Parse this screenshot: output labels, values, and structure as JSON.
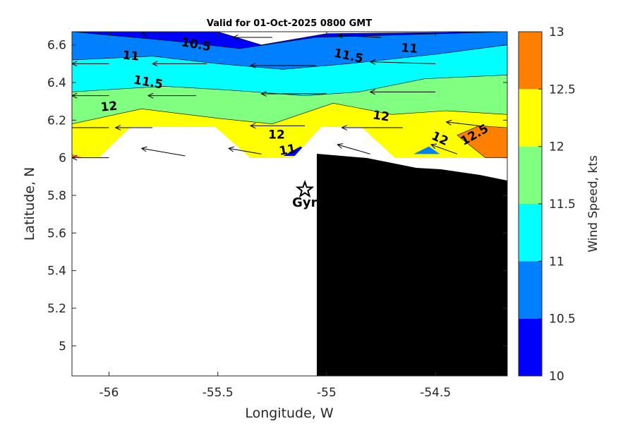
{
  "chart_data": {
    "type": "contour",
    "title": "Valid for 01-Oct-2025 0800 GMT",
    "xlabel": "Longitude, W",
    "ylabel": "Latitude, N",
    "xlim": [
      -56.17,
      -54.17
    ],
    "ylim": [
      4.84,
      6.67
    ],
    "xticks": [
      -56,
      -55.5,
      -55,
      -54.5
    ],
    "xtick_labels": [
      "-56",
      "-55.5",
      "-55",
      "-54.5"
    ],
    "yticks": [
      5,
      5.2,
      5.4,
      5.6,
      5.8,
      6,
      6.2,
      6.4,
      6.6
    ],
    "ytick_labels": [
      "5",
      "5.2",
      "5.4",
      "5.6",
      "5.8",
      "6",
      "6.2",
      "6.4",
      "6.6"
    ],
    "colorbar": {
      "label": "Wind Speed, kts",
      "limits": [
        10,
        13
      ],
      "ticks": [
        10,
        10.5,
        11,
        11.5,
        12,
        12.5,
        13
      ],
      "tick_labels": [
        "10",
        "10.5",
        "11",
        "11.5",
        "12",
        "12.5",
        "13"
      ],
      "levels": [
        {
          "from": 10,
          "to": 10.5,
          "color": "#0000ff"
        },
        {
          "from": 10.5,
          "to": 11,
          "color": "#0080ff"
        },
        {
          "from": 11,
          "to": 11.5,
          "color": "#00ffff"
        },
        {
          "from": 11.5,
          "to": 12,
          "color": "#80ff80"
        },
        {
          "from": 12,
          "to": 12.5,
          "color": "#ffff00"
        },
        {
          "from": 12.5,
          "to": 13,
          "color": "#ff8000"
        }
      ]
    },
    "bands": [
      {
        "level": 10,
        "points": [
          [
            -56.17,
            6.67
          ],
          [
            -55.5,
            6.67
          ],
          [
            -55.3,
            6.6
          ],
          [
            -55,
            6.66
          ],
          [
            -54.17,
            6.67
          ]
        ]
      },
      {
        "level": 10.5,
        "points": [
          [
            -56.17,
            6.67
          ],
          [
            -55.7,
            6.62
          ],
          [
            -55.4,
            6.58
          ],
          [
            -55.05,
            6.64
          ],
          [
            -54.17,
            6.67
          ]
        ]
      },
      {
        "level": 11,
        "points": [
          [
            -56.17,
            6.52
          ],
          [
            -55.8,
            6.54
          ],
          [
            -55.5,
            6.5
          ],
          [
            -55.2,
            6.47
          ],
          [
            -54.9,
            6.5
          ],
          [
            -54.5,
            6.55
          ],
          [
            -54.17,
            6.6
          ]
        ]
      },
      {
        "level": 11.5,
        "points": [
          [
            -56.17,
            6.35
          ],
          [
            -55.75,
            6.38
          ],
          [
            -55.45,
            6.36
          ],
          [
            -55.1,
            6.33
          ],
          [
            -54.85,
            6.35
          ],
          [
            -54.55,
            6.42
          ],
          [
            -54.17,
            6.44
          ]
        ]
      },
      {
        "level": 12,
        "points": [
          [
            -56.17,
            6.18
          ],
          [
            -55.85,
            6.26
          ],
          [
            -55.5,
            6.21
          ],
          [
            -55.25,
            6.18
          ],
          [
            -54.97,
            6.29
          ],
          [
            -54.7,
            6.23
          ],
          [
            -54.45,
            6.25
          ],
          [
            -54.17,
            6.23
          ]
        ]
      },
      {
        "level": 12.5,
        "points": [
          [
            -54.17,
            6.16
          ],
          [
            -54.3,
            6.17
          ],
          [
            -54.4,
            6.12
          ],
          [
            -54.27,
            6.0
          ],
          [
            -54.17,
            6.0
          ]
        ]
      }
    ],
    "contour_labels": [
      {
        "text": "10.5",
        "lon": -55.6,
        "lat": 6.6,
        "rotate": 10
      },
      {
        "text": "11",
        "lon": -55.9,
        "lat": 6.54,
        "rotate": 5
      },
      {
        "text": "11.5",
        "lon": -55.82,
        "lat": 6.4,
        "rotate": 10
      },
      {
        "text": "12",
        "lon": -56.0,
        "lat": 6.27,
        "rotate": -5
      },
      {
        "text": "11.5",
        "lon": -54.9,
        "lat": 6.54,
        "rotate": 12
      },
      {
        "text": "11",
        "lon": -54.62,
        "lat": 6.58,
        "rotate": 5
      },
      {
        "text": "12",
        "lon": -54.75,
        "lat": 6.22,
        "rotate": 8
      },
      {
        "text": "12",
        "lon": -55.23,
        "lat": 6.12,
        "rotate": 0
      },
      {
        "text": "11",
        "lon": -55.18,
        "lat": 6.04,
        "rotate": -10
      },
      {
        "text": "12",
        "lon": -54.48,
        "lat": 6.1,
        "rotate": 25
      },
      {
        "text": "12.5",
        "lon": -54.32,
        "lat": 6.12,
        "rotate": -30
      }
    ],
    "wind_arrows": [
      {
        "lon": -55.7,
        "lat": 6.66,
        "dlon": -0.15,
        "dlat": 0.0
      },
      {
        "lon": -55.25,
        "lat": 6.64,
        "dlon": -0.18,
        "dlat": 0.0
      },
      {
        "lon": -54.75,
        "lat": 6.64,
        "dlon": -0.2,
        "dlat": 0.01
      },
      {
        "lon": -56.0,
        "lat": 6.5,
        "dlon": -0.17,
        "dlat": 0.0
      },
      {
        "lon": -55.55,
        "lat": 6.5,
        "dlon": -0.25,
        "dlat": 0.0
      },
      {
        "lon": -55.05,
        "lat": 6.49,
        "dlon": -0.3,
        "dlat": 0.0
      },
      {
        "lon": -54.5,
        "lat": 6.5,
        "dlon": -0.3,
        "dlat": 0.01
      },
      {
        "lon": -56.0,
        "lat": 6.33,
        "dlon": -0.17,
        "dlat": 0.0
      },
      {
        "lon": -55.6,
        "lat": 6.33,
        "dlon": -0.22,
        "dlat": 0.0
      },
      {
        "lon": -55.0,
        "lat": 6.34,
        "dlon": -0.3,
        "dlat": 0.0
      },
      {
        "lon": -54.5,
        "lat": 6.35,
        "dlon": -0.3,
        "dlat": 0.0
      },
      {
        "lon": -56.0,
        "lat": 6.16,
        "dlon": -0.2,
        "dlat": 0.0
      },
      {
        "lon": -55.8,
        "lat": 6.16,
        "dlon": -0.17,
        "dlat": 0.0
      },
      {
        "lon": -55.1,
        "lat": 6.17,
        "dlon": -0.25,
        "dlat": 0.0
      },
      {
        "lon": -54.65,
        "lat": 6.16,
        "dlon": -0.28,
        "dlat": 0.0
      },
      {
        "lon": -54.3,
        "lat": 6.17,
        "dlon": -0.15,
        "dlat": 0.02
      },
      {
        "lon": -56.0,
        "lat": 6.0,
        "dlon": -0.17,
        "dlat": 0.0
      },
      {
        "lon": -55.65,
        "lat": 6.01,
        "dlon": -0.2,
        "dlat": 0.04
      },
      {
        "lon": -55.3,
        "lat": 6.02,
        "dlon": -0.15,
        "dlat": 0.03
      },
      {
        "lon": -54.8,
        "lat": 6.02,
        "dlon": -0.15,
        "dlat": 0.05
      },
      {
        "lon": -54.4,
        "lat": 6.02,
        "dlon": -0.12,
        "dlat": 0.05
      }
    ],
    "land_mask_color": "#ffffff",
    "dark_region_color": "#000000",
    "marker": {
      "symbol": "star",
      "label": "Gyr",
      "lon": -55.1,
      "lat": 5.83
    }
  }
}
